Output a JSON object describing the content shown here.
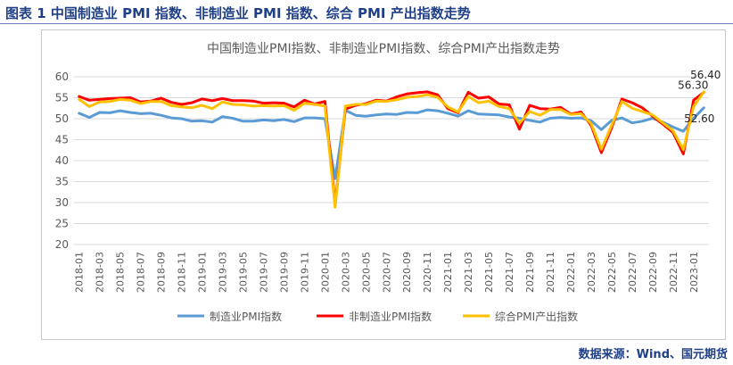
{
  "caption": "图表 1 中国制造业 PMI 指数、非制造业 PMI 指数、综合 PMI 产出指数走势",
  "source": "数据来源：Wind、国元期货",
  "colors": {
    "manufacturing": "#5b9bd5",
    "non_manufacturing": "#ff0000",
    "composite": "#ffc000",
    "grid": "#d9d9d9",
    "axis_text": "#595959",
    "title_text": "#595959"
  },
  "chart_data": {
    "type": "line",
    "title": "中国制造业PMI指数、非制造业PMI指数、综合PMI产出指数走势",
    "xlabel": "",
    "ylabel": "",
    "ylim": [
      20,
      60
    ],
    "yticks": [
      "20",
      "25",
      "30",
      "35",
      "40",
      "45",
      "50",
      "55",
      "60"
    ],
    "grid": true,
    "legend": "bottom",
    "x": [
      "2018-01",
      "2018-02",
      "2018-03",
      "2018-04",
      "2018-05",
      "2018-06",
      "2018-07",
      "2018-08",
      "2018-09",
      "2018-10",
      "2018-11",
      "2018-12",
      "2019-01",
      "2019-02",
      "2019-03",
      "2019-04",
      "2019-05",
      "2019-06",
      "2019-07",
      "2019-08",
      "2019-09",
      "2019-10",
      "2019-11",
      "2019-12",
      "2020-01",
      "2020-02",
      "2020-03",
      "2020-04",
      "2020-05",
      "2020-06",
      "2020-07",
      "2020-08",
      "2020-09",
      "2020-10",
      "2020-11",
      "2020-12",
      "2021-01",
      "2021-02",
      "2021-03",
      "2021-04",
      "2021-05",
      "2021-06",
      "2021-07",
      "2021-08",
      "2021-09",
      "2021-10",
      "2021-11",
      "2021-12",
      "2022-01",
      "2022-02",
      "2022-03",
      "2022-04",
      "2022-05",
      "2022-06",
      "2022-07",
      "2022-08",
      "2022-09",
      "2022-10",
      "2022-11",
      "2022-12",
      "2023-01",
      "2023-02"
    ],
    "tick_labels": [
      "2018-01",
      "2018-03",
      "2018-05",
      "2018-07",
      "2018-09",
      "2018-11",
      "2019-01",
      "2019-03",
      "2019-05",
      "2019-07",
      "2019-09",
      "2019-11",
      "2020-01",
      "2020-03",
      "2020-05",
      "2020-07",
      "2020-09",
      "2020-11",
      "2021-01",
      "2021-03",
      "2021-05",
      "2021-07",
      "2021-09",
      "2021-11",
      "2022-01",
      "2022-03",
      "2022-05",
      "2022-07",
      "2022-09",
      "2022-11",
      "2023-01"
    ],
    "series": [
      {
        "name": "制造业PMI指数",
        "key": "manufacturing",
        "values": [
          51.3,
          50.3,
          51.5,
          51.4,
          51.9,
          51.5,
          51.2,
          51.3,
          50.8,
          50.2,
          50.0,
          49.4,
          49.5,
          49.2,
          50.5,
          50.1,
          49.4,
          49.4,
          49.7,
          49.5,
          49.8,
          49.3,
          50.2,
          50.2,
          50.0,
          35.7,
          52.0,
          50.8,
          50.6,
          50.9,
          51.1,
          51.0,
          51.5,
          51.4,
          52.1,
          51.9,
          51.3,
          50.6,
          51.9,
          51.1,
          51.0,
          50.9,
          50.4,
          50.1,
          49.6,
          49.2,
          50.1,
          50.3,
          50.1,
          50.2,
          49.5,
          47.4,
          49.6,
          50.2,
          49.0,
          49.4,
          50.1,
          49.2,
          48.0,
          47.0,
          50.1,
          52.6
        ]
      },
      {
        "name": "非制造业PMI指数",
        "key": "non_manufacturing",
        "values": [
          55.3,
          54.4,
          54.6,
          54.8,
          54.9,
          55.0,
          54.0,
          54.2,
          54.9,
          53.9,
          53.4,
          53.8,
          54.7,
          54.3,
          54.8,
          54.3,
          54.3,
          54.2,
          53.7,
          53.8,
          53.7,
          52.8,
          54.4,
          53.5,
          54.1,
          29.6,
          52.3,
          53.2,
          53.6,
          54.4,
          54.2,
          55.2,
          55.9,
          56.2,
          56.4,
          55.7,
          52.4,
          51.4,
          56.3,
          54.9,
          55.2,
          53.5,
          53.3,
          47.5,
          53.2,
          52.4,
          52.3,
          52.7,
          51.1,
          51.6,
          48.4,
          41.9,
          47.8,
          54.7,
          53.8,
          52.6,
          50.6,
          48.7,
          46.7,
          41.6,
          54.4,
          56.3
        ]
      },
      {
        "name": "综合PMI产出指数",
        "key": "composite",
        "values": [
          54.6,
          52.9,
          54.0,
          54.1,
          54.6,
          54.4,
          53.6,
          54.1,
          54.1,
          53.1,
          52.8,
          52.6,
          53.2,
          52.4,
          54.0,
          53.4,
          53.3,
          53.0,
          53.1,
          53.0,
          53.1,
          52.0,
          53.7,
          53.4,
          53.0,
          28.9,
          53.0,
          53.4,
          53.4,
          54.2,
          54.1,
          54.5,
          55.1,
          55.3,
          55.7,
          55.1,
          52.8,
          51.6,
          55.3,
          53.8,
          54.2,
          52.9,
          52.4,
          48.9,
          51.7,
          50.8,
          52.2,
          52.2,
          51.0,
          51.2,
          48.8,
          42.7,
          48.4,
          54.1,
          52.5,
          51.7,
          50.9,
          49.0,
          47.1,
          42.6,
          52.9,
          56.4
        ]
      }
    ],
    "annotations": [
      {
        "text": "56.40",
        "series": "composite",
        "index": 61
      },
      {
        "text": "56.30",
        "series": "non_manufacturing",
        "index": 61
      },
      {
        "text": "52.60",
        "series": "manufacturing",
        "index": 61
      }
    ]
  }
}
